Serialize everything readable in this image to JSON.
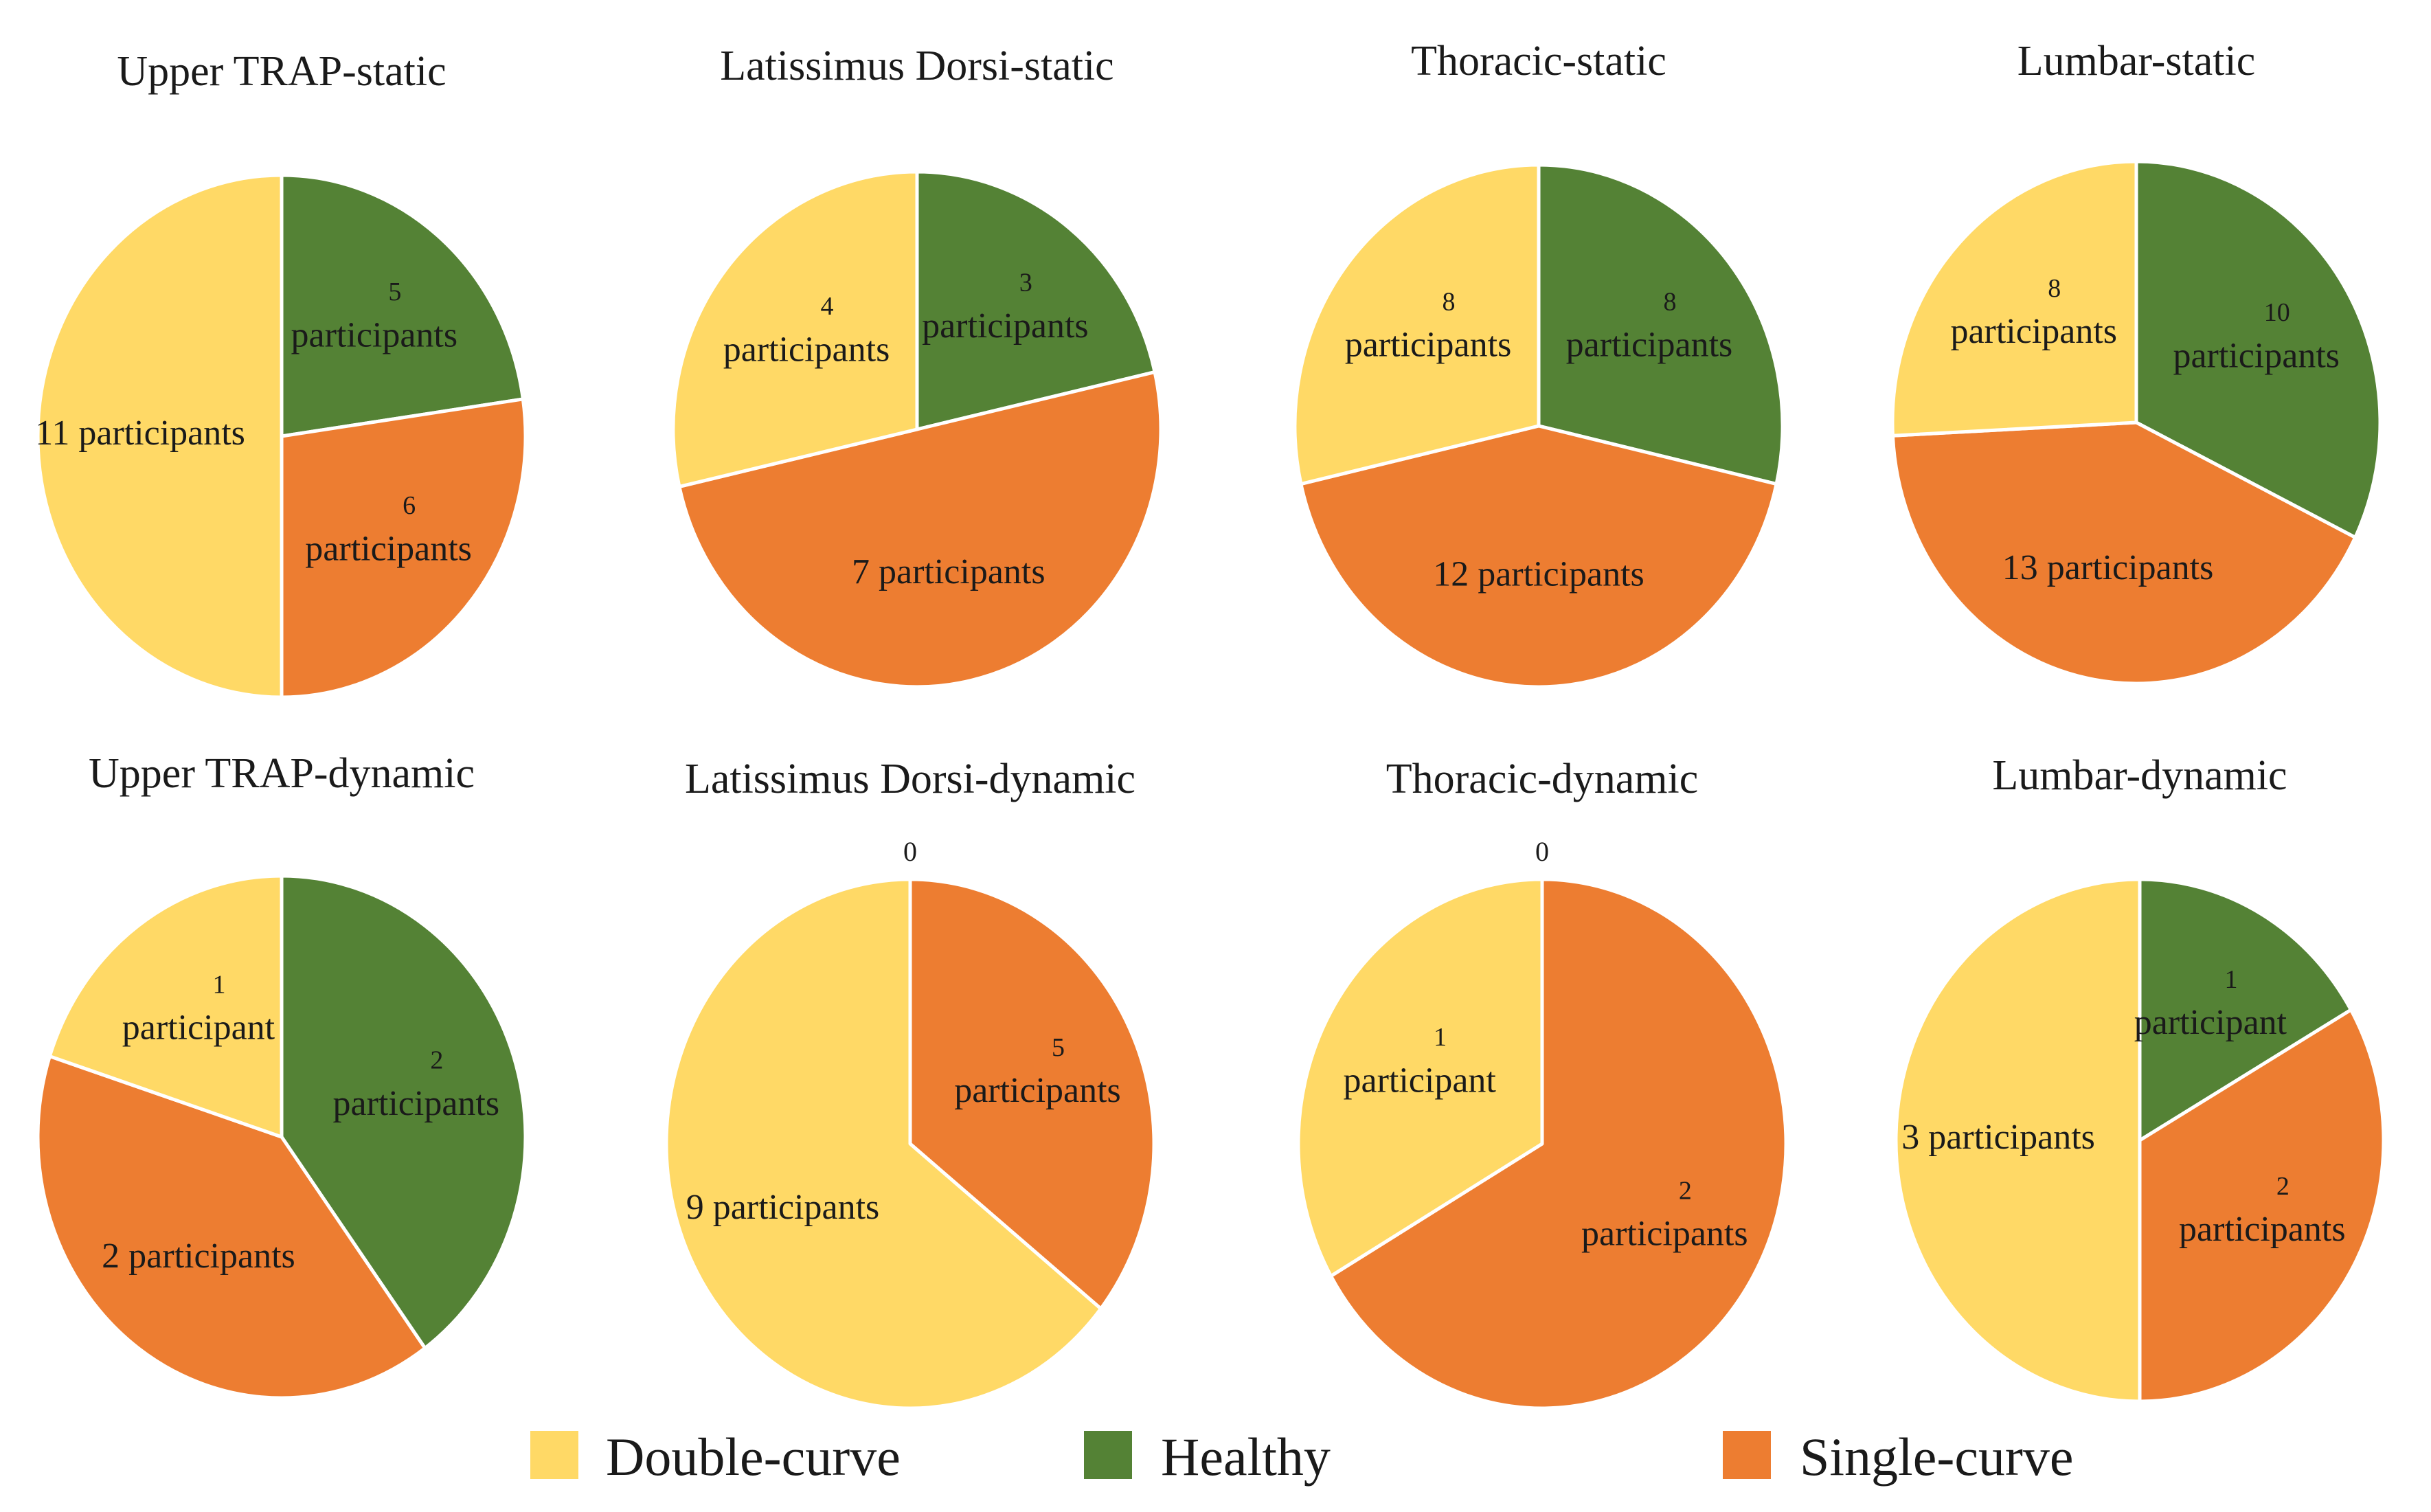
{
  "legend": {
    "double_curve": "Double-curve",
    "healthy": "Healthy",
    "single_curve": "Single-curve"
  },
  "colors": {
    "double_curve": "#FFD966",
    "healthy": "#548235",
    "single_curve": "#ED7D31"
  },
  "chart_data": [
    {
      "type": "pie",
      "title": "Upper TRAP-static",
      "slices": [
        {
          "category": "Healthy",
          "value": 5,
          "label": [
            "5",
            "participants"
          ]
        },
        {
          "category": "Single-curve",
          "value": 6,
          "label": [
            "6",
            "participants"
          ]
        },
        {
          "category": "Double-curve",
          "value": 11,
          "label": [
            "11 participants"
          ]
        }
      ]
    },
    {
      "type": "pie",
      "title": "Latissimus Dorsi-static",
      "slices": [
        {
          "category": "Healthy",
          "value": 3,
          "label": [
            "3",
            "participants"
          ]
        },
        {
          "category": "Single-curve",
          "value": 7,
          "label": [
            "7 participants"
          ]
        },
        {
          "category": "Double-curve",
          "value": 4,
          "label": [
            "4",
            "participants"
          ]
        }
      ]
    },
    {
      "type": "pie",
      "title": "Thoracic-static",
      "slices": [
        {
          "category": "Healthy",
          "value": 8,
          "label": [
            "8",
            "participants"
          ]
        },
        {
          "category": "Single-curve",
          "value": 12,
          "label": [
            "12 participants"
          ]
        },
        {
          "category": "Double-curve",
          "value": 8,
          "label": [
            "8",
            "participants"
          ]
        }
      ]
    },
    {
      "type": "pie",
      "title": "Lumbar-static",
      "slices": [
        {
          "category": "Healthy",
          "value": 10,
          "label": [
            "10",
            "participants"
          ]
        },
        {
          "category": "Single-curve",
          "value": 13,
          "label": [
            "13 participants"
          ]
        },
        {
          "category": "Double-curve",
          "value": 8,
          "label": [
            "8",
            "participants"
          ]
        }
      ]
    },
    {
      "type": "pie",
      "title": "Upper TRAP-dynamic",
      "slices": [
        {
          "category": "Healthy",
          "value": 2,
          "label": [
            "2",
            "participants"
          ]
        },
        {
          "category": "Single-curve",
          "value": 2,
          "label": [
            "2 participants"
          ]
        },
        {
          "category": "Double-curve",
          "value": 1,
          "label": [
            "1",
            "participant"
          ]
        }
      ]
    },
    {
      "type": "pie",
      "title": "Latissimus Dorsi-dynamic",
      "slices": [
        {
          "category": "Healthy",
          "value": 0,
          "label": [
            "0"
          ]
        },
        {
          "category": "Single-curve",
          "value": 5,
          "label": [
            "5",
            "participants"
          ]
        },
        {
          "category": "Double-curve",
          "value": 9,
          "label": [
            "9 participants"
          ]
        }
      ]
    },
    {
      "type": "pie",
      "title": "Thoracic-dynamic",
      "slices": [
        {
          "category": "Healthy",
          "value": 0,
          "label": [
            "0"
          ]
        },
        {
          "category": "Single-curve",
          "value": 2,
          "label": [
            "2",
            "participants"
          ]
        },
        {
          "category": "Double-curve",
          "value": 1,
          "label": [
            "1",
            "participant"
          ]
        }
      ]
    },
    {
      "type": "pie",
      "title": "Lumbar-dynamic",
      "slices": [
        {
          "category": "Healthy",
          "value": 1,
          "label": [
            "1",
            "participant"
          ]
        },
        {
          "category": "Single-curve",
          "value": 2,
          "label": [
            "2",
            "participants"
          ]
        },
        {
          "category": "Double-curve",
          "value": 3,
          "label": [
            "3 participants"
          ]
        }
      ]
    }
  ]
}
